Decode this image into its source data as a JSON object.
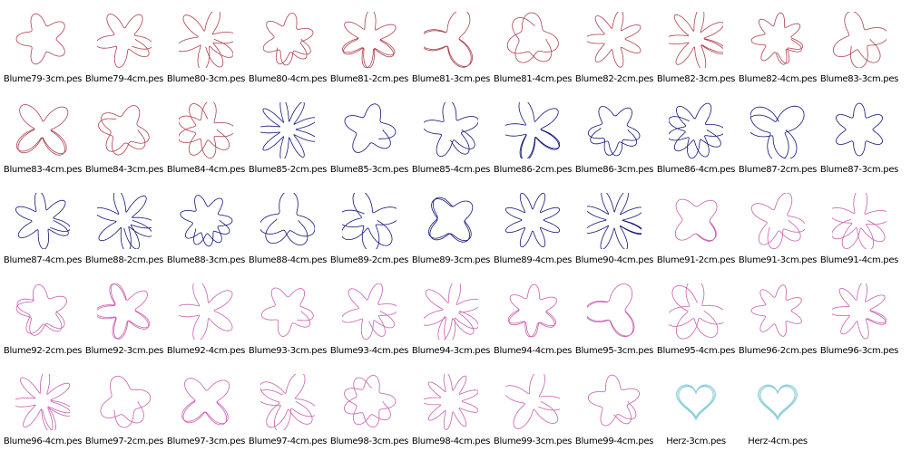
{
  "files": [
    "Blume79-3cm.pes",
    "Blume79-4cm.pes",
    "Blume80-3cm.pes",
    "Blume80-4cm.pes",
    "Blume81-2cm.pes",
    "Blume81-3cm.pes",
    "Blume81-4cm.pes",
    "Blume82-2cm.pes",
    "Blume82-3cm.pes",
    "Blume82-4cm.pes",
    "Blume83-3cm.pes",
    "Blume83-4cm.pes",
    "Blume84-3cm.pes",
    "Blume84-4cm.pes",
    "Blume85-2cm.pes",
    "Blume85-3cm.pes",
    "Blume85-4cm.pes",
    "Blume86-2cm.pes",
    "Blume86-3cm.pes",
    "Blume86-4cm.pes",
    "Blume87-2cm.pes",
    "Blume87-3cm.pes",
    "Blume87-4cm.pes",
    "Blume88-2cm.pes",
    "Blume88-3cm.pes",
    "Blume88-4cm.pes",
    "Blume89-2cm.pes",
    "Blume89-3cm.pes",
    "Blume89-4cm.pes",
    "Blume90-4cm.pes",
    "Blume91-2cm.pes",
    "Blume91-3cm.pes",
    "Blume91-4cm.pes",
    "Blume92-2cm.pes",
    "Blume92-3cm.pes",
    "Blume92-4cm.pes",
    "Blume93-3cm.pes",
    "Blume93-4cm.pes",
    "Blume94-3cm.pes",
    "Blume94-4cm.pes",
    "Blume95-3cm.pes",
    "Blume95-4cm.pes",
    "Blume96-2cm.pes",
    "Blume96-3cm.pes",
    "Blume96-4cm.pes",
    "Blume97-2cm.pes",
    "Blume97-3cm.pes",
    "Blume97-4cm.pes",
    "Blume98-3cm.pes",
    "Blume98-4cm.pes",
    "Blume99-3cm.pes",
    "Blume99-4cm.pes",
    "Herz-3cm.pes",
    "Herz-4cm.pes"
  ]
}
